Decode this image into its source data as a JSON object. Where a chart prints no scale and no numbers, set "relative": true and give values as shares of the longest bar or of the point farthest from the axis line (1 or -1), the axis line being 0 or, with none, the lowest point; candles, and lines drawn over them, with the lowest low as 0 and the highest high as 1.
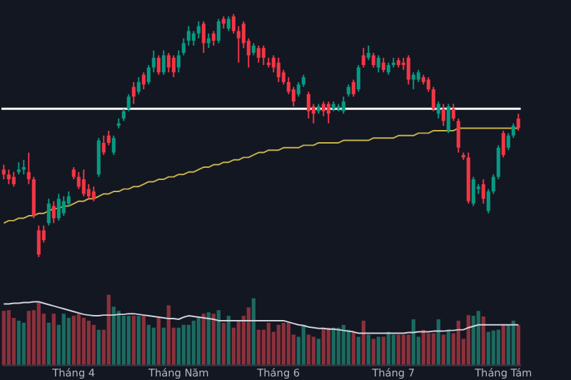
{
  "chart_data": [
    {
      "type": "candlestick",
      "relative": true,
      "tick_labels": false,
      "categories": [
        null,
        null,
        null,
        null,
        null,
        null,
        null,
        null,
        null,
        null,
        null,
        null,
        null,
        null,
        null,
        null,
        null,
        null,
        null,
        null,
        null,
        null,
        null,
        null,
        null,
        null,
        null,
        null,
        null,
        null,
        null,
        null,
        null,
        null,
        null,
        null,
        null,
        null,
        null,
        null,
        null,
        null,
        null,
        null,
        null,
        null,
        null,
        null,
        null,
        null,
        null,
        null,
        null,
        null,
        null,
        null,
        null,
        null,
        null,
        null,
        null,
        null,
        null,
        null,
        null,
        null,
        null,
        null,
        null,
        null,
        null,
        null,
        null,
        null,
        null,
        null,
        null,
        null,
        null,
        null,
        null,
        null,
        null,
        null,
        null,
        null,
        null,
        null,
        null,
        null,
        null,
        null,
        null,
        null,
        null,
        null,
        null,
        null,
        null,
        null,
        null,
        null,
        null,
        null
      ],
      "ohlc": [
        [
          0.36,
          0.38,
          0.32,
          0.34
        ],
        [
          0.34,
          0.36,
          0.3,
          0.32
        ],
        [
          0.33,
          0.35,
          0.29,
          0.3
        ],
        [
          0.35,
          0.39,
          0.34,
          0.36
        ],
        [
          0.36,
          0.4,
          0.34,
          0.37
        ],
        [
          0.35,
          0.43,
          0.3,
          0.32
        ],
        [
          0.32,
          0.33,
          0.16,
          0.17
        ],
        [
          0.11,
          0.13,
          0,
          0.01
        ],
        [
          0.11,
          0.13,
          0.06,
          0.07
        ],
        [
          0.14,
          0.24,
          0.13,
          0.22
        ],
        [
          0.21,
          0.23,
          0.14,
          0.16
        ],
        [
          0.16,
          0.26,
          0.15,
          0.24
        ],
        [
          0.18,
          0.25,
          0.17,
          0.23
        ],
        [
          0.22,
          0.27,
          0.21,
          0.25
        ],
        [
          0.36,
          0.37,
          0.32,
          0.33
        ],
        [
          0.33,
          0.35,
          0.28,
          0.29
        ],
        [
          0.32,
          0.36,
          0.25,
          0.26
        ],
        [
          0.28,
          0.3,
          0.24,
          0.25
        ],
        [
          0.27,
          0.29,
          0.23,
          0.24
        ],
        [
          0.34,
          0.49,
          0.33,
          0.48
        ],
        [
          0.47,
          0.5,
          0.42,
          0.43
        ],
        [
          0.5,
          0.52,
          0.46,
          0.47
        ],
        [
          0.43,
          0.5,
          0.42,
          0.49
        ],
        [
          0.54,
          0.57,
          0.53,
          0.55
        ],
        [
          0.57,
          0.61,
          0.56,
          0.6
        ],
        [
          0.61,
          0.67,
          0.6,
          0.66
        ],
        [
          0.7,
          0.72,
          0.63,
          0.66
        ],
        [
          0.68,
          0.74,
          0.67,
          0.72
        ],
        [
          0.75,
          0.76,
          0.69,
          0.71
        ],
        [
          0.72,
          0.79,
          0.71,
          0.78
        ],
        [
          0.78,
          0.85,
          0.76,
          0.82
        ],
        [
          0.82,
          0.83,
          0.75,
          0.76
        ],
        [
          0.76,
          0.85,
          0.75,
          0.83
        ],
        [
          0.83,
          0.84,
          0.76,
          0.78
        ],
        [
          0.82,
          0.83,
          0.74,
          0.76
        ],
        [
          0.78,
          0.85,
          0.76,
          0.83
        ],
        [
          0.84,
          0.9,
          0.83,
          0.88
        ],
        [
          0.89,
          0.95,
          0.87,
          0.93
        ],
        [
          0.89,
          0.93,
          0.87,
          0.92
        ],
        [
          0.92,
          0.97,
          0.9,
          0.95
        ],
        [
          0.96,
          0.97,
          0.84,
          0.88
        ],
        [
          0.88,
          0.92,
          0.86,
          0.9
        ],
        [
          0.92,
          0.93,
          0.87,
          0.89
        ],
        [
          0.89,
          0.98,
          0.88,
          0.97
        ],
        [
          0.98,
          0.99,
          0.94,
          0.96
        ],
        [
          0.94,
          0.99,
          0.93,
          0.98
        ],
        [
          0.99,
          1.0,
          0.92,
          0.93
        ],
        [
          0.93,
          0.95,
          0.8,
          0.9
        ],
        [
          0.96,
          0.97,
          0.86,
          0.88
        ],
        [
          0.89,
          0.9,
          0.78,
          0.83
        ],
        [
          0.84,
          0.88,
          0.83,
          0.87
        ],
        [
          0.86,
          0.87,
          0.8,
          0.82
        ],
        [
          0.86,
          0.87,
          0.79,
          0.82
        ],
        [
          0.8,
          0.82,
          0.78,
          0.79
        ],
        [
          0.82,
          0.83,
          0.76,
          0.78
        ],
        [
          0.8,
          0.82,
          0.72,
          0.74
        ],
        [
          0.76,
          0.77,
          0.71,
          0.72
        ],
        [
          0.72,
          0.74,
          0.67,
          0.68
        ],
        [
          0.69,
          0.7,
          0.62,
          0.64
        ],
        [
          0.67,
          0.72,
          0.66,
          0.71
        ],
        [
          0.71,
          0.75,
          0.7,
          0.74
        ],
        [
          0.67,
          0.68,
          0.57,
          0.6
        ],
        [
          0.62,
          0.63,
          0.55,
          0.59
        ],
        [
          0.6,
          0.63,
          0.59,
          0.62
        ],
        [
          0.63,
          0.64,
          0.58,
          0.6
        ],
        [
          0.63,
          0.64,
          0.55,
          0.59
        ],
        [
          0.61,
          0.64,
          0.6,
          0.63
        ],
        [
          0.61,
          0.63,
          0.6,
          0.62
        ],
        [
          0.6,
          0.66,
          0.59,
          0.64
        ],
        [
          0.67,
          0.71,
          0.66,
          0.7
        ],
        [
          0.72,
          0.73,
          0.66,
          0.67
        ],
        [
          0.69,
          0.79,
          0.68,
          0.78
        ],
        [
          0.83,
          0.86,
          0.78,
          0.79
        ],
        [
          0.82,
          0.87,
          0.81,
          0.84
        ],
        [
          0.83,
          0.84,
          0.78,
          0.79
        ],
        [
          0.78,
          0.83,
          0.76,
          0.82
        ],
        [
          0.8,
          0.82,
          0.76,
          0.77
        ],
        [
          0.76,
          0.8,
          0.75,
          0.79
        ],
        [
          0.79,
          0.82,
          0.78,
          0.8
        ],
        [
          0.81,
          0.82,
          0.78,
          0.79
        ],
        [
          0.8,
          0.82,
          0.77,
          0.79
        ],
        [
          0.82,
          0.83,
          0.71,
          0.73
        ],
        [
          0.73,
          0.76,
          0.69,
          0.75
        ],
        [
          0.73,
          0.77,
          0.72,
          0.76
        ],
        [
          0.74,
          0.75,
          0.71,
          0.72
        ],
        [
          0.73,
          0.74,
          0.68,
          0.69
        ],
        [
          0.69,
          0.7,
          0.6,
          0.61
        ],
        [
          0.59,
          0.64,
          0.57,
          0.63
        ],
        [
          0.61,
          0.63,
          0.54,
          0.56
        ],
        [
          0.52,
          0.63,
          0.51,
          0.62
        ],
        [
          0.61,
          0.63,
          0.56,
          0.57
        ],
        [
          0.56,
          0.57,
          0.43,
          0.45
        ],
        [
          0.42,
          0.43,
          0.4,
          0.41
        ],
        [
          0.41,
          0.43,
          0.22,
          0.23
        ],
        [
          0.22,
          0.33,
          0.21,
          0.32
        ],
        [
          0.28,
          0.3,
          0.26,
          0.29
        ],
        [
          0.3,
          0.32,
          0.22,
          0.24
        ],
        [
          0.19,
          0.28,
          0.18,
          0.27
        ],
        [
          0.27,
          0.34,
          0.26,
          0.33
        ],
        [
          0.33,
          0.46,
          0.32,
          0.45
        ],
        [
          0.51,
          0.52,
          0.41,
          0.42
        ],
        [
          0.45,
          0.51,
          0.44,
          0.5
        ],
        [
          0.5,
          0.55,
          0.49,
          0.54
        ],
        [
          0.57,
          0.59,
          0.52,
          0.53
        ]
      ],
      "colors": [
        "#f23645",
        "#f23645",
        "#f23645",
        "#089981",
        "#089981",
        "#f23645",
        "#f23645",
        "#f23645",
        "#f23645",
        "#089981",
        "#f23645",
        "#089981",
        "#089981",
        "#089981",
        "#f23645",
        "#f23645",
        "#f23645",
        "#f23645",
        "#f23645",
        "#089981",
        "#f23645",
        "#f23645",
        "#089981",
        "#089981",
        "#089981",
        "#089981",
        "#f23645",
        "#089981",
        "#f23645",
        "#089981",
        "#089981",
        "#f23645",
        "#089981",
        "#f23645",
        "#f23645",
        "#089981",
        "#089981",
        "#089981",
        "#089981",
        "#089981",
        "#f23645",
        "#089981",
        "#f23645",
        "#089981",
        "#f23645",
        "#089981",
        "#f23645",
        "#f23645",
        "#f23645",
        "#f23645",
        "#089981",
        "#f23645",
        "#f23645",
        "#f23645",
        "#f23645",
        "#f23645",
        "#f23645",
        "#f23645",
        "#f23645",
        "#089981",
        "#089981",
        "#f23645",
        "#f23645",
        "#089981",
        "#f23645",
        "#f23645",
        "#089981",
        "#089981",
        "#089981",
        "#089981",
        "#f23645",
        "#089981",
        "#f23645",
        "#089981",
        "#f23645",
        "#089981",
        "#f23645",
        "#089981",
        "#089981",
        "#f23645",
        "#f23645",
        "#f23645",
        "#089981",
        "#089981",
        "#f23645",
        "#f23645",
        "#f23645",
        "#089981",
        "#f23645",
        "#089981",
        "#f23645",
        "#f23645",
        "#f23645",
        "#f23645",
        "#089981",
        "#089981",
        "#f23645",
        "#089981",
        "#089981",
        "#089981",
        "#f23645",
        "#089981",
        "#089981",
        "#f23645"
      ],
      "series": [
        {
          "type": "line",
          "color": "#c9b24a",
          "values": [
            0.14,
            0.15,
            0.15,
            0.16,
            0.16,
            0.17,
            0.17,
            0.18,
            0.18,
            0.19,
            0.2,
            0.2,
            0.21,
            0.21,
            0.22,
            0.23,
            0.23,
            0.24,
            0.24,
            0.25,
            0.26,
            0.26,
            0.27,
            0.27,
            0.28,
            0.28,
            0.29,
            0.29,
            0.3,
            0.31,
            0.31,
            0.32,
            0.32,
            0.33,
            0.33,
            0.34,
            0.34,
            0.35,
            0.35,
            0.36,
            0.37,
            0.37,
            0.38,
            0.38,
            0.39,
            0.39,
            0.4,
            0.4,
            0.41,
            0.41,
            0.42,
            0.43,
            0.43,
            0.44,
            0.44,
            0.44,
            0.45,
            0.45,
            0.45,
            0.45,
            0.46,
            0.46,
            0.46,
            0.47,
            0.47,
            0.47,
            0.47,
            0.47,
            0.48,
            0.48,
            0.48,
            0.48,
            0.48,
            0.48,
            0.49,
            0.49,
            0.49,
            0.49,
            0.49,
            0.5,
            0.5,
            0.5,
            0.5,
            0.51,
            0.51,
            0.51,
            0.52,
            0.52,
            0.52,
            0.52,
            0.52,
            0.53,
            0.53,
            0.53,
            0.53,
            0.53,
            0.53,
            0.53,
            0.53,
            0.53,
            0.53,
            0.53,
            0.53,
            0.53
          ]
        }
      ],
      "ref_lines": [
        {
          "axis": "y",
          "value": 0.61,
          "color": "#ffffff"
        }
      ]
    },
    {
      "type": "bar",
      "relative": true,
      "tick_labels": "x",
      "categories": [
        null,
        null,
        null,
        null,
        null,
        null,
        null,
        null,
        null,
        null,
        null,
        null,
        null,
        null,
        "Tháng 4",
        null,
        null,
        null,
        null,
        null,
        null,
        null,
        null,
        null,
        null,
        null,
        null,
        null,
        null,
        null,
        null,
        null,
        null,
        null,
        null,
        "Tháng Năm",
        null,
        null,
        null,
        null,
        null,
        null,
        null,
        null,
        null,
        null,
        null,
        null,
        null,
        null,
        null,
        null,
        null,
        null,
        null,
        "Tháng 6",
        null,
        null,
        null,
        null,
        null,
        null,
        null,
        null,
        null,
        null,
        null,
        null,
        null,
        null,
        null,
        null,
        null,
        null,
        null,
        null,
        null,
        null,
        "Tháng 7",
        null,
        null,
        null,
        null,
        null,
        null,
        null,
        null,
        null,
        null,
        null,
        null,
        null,
        null,
        null,
        null,
        null,
        null,
        null,
        null,
        null,
        "Tháng Tám",
        null,
        null,
        null
      ],
      "series": [
        {
          "type": "bar",
          "values": [
            0.77,
            0.78,
            0.67,
            0.63,
            0.6,
            0.77,
            0.78,
            0.89,
            0.73,
            0.6,
            0.73,
            0.57,
            0.73,
            0.67,
            0.7,
            0.73,
            0.67,
            0.63,
            0.57,
            0.5,
            0.5,
            1.0,
            0.83,
            0.77,
            0.7,
            0.7,
            0.7,
            0.7,
            0.7,
            0.57,
            0.53,
            0.67,
            0.53,
            0.85,
            0.53,
            0.53,
            0.57,
            0.57,
            0.63,
            0.67,
            0.73,
            0.75,
            0.73,
            0.78,
            0.6,
            0.7,
            0.53,
            0.63,
            0.7,
            0.82,
            0.95,
            0.5,
            0.5,
            0.6,
            0.47,
            0.57,
            0.6,
            0.6,
            0.43,
            0.4,
            0.57,
            0.43,
            0.4,
            0.37,
            0.53,
            0.53,
            0.53,
            0.53,
            0.57,
            0.5,
            0.47,
            0.4,
            0.63,
            0.43,
            0.37,
            0.4,
            0.4,
            0.47,
            0.43,
            0.43,
            0.43,
            0.43,
            0.65,
            0.4,
            0.5,
            0.45,
            0.45,
            0.65,
            0.43,
            0.5,
            0.45,
            0.63,
            0.37,
            0.71,
            0.7,
            0.77,
            0.69,
            0.47,
            0.49,
            0.5,
            0.57,
            0.57,
            0.63,
            0.57
          ],
          "colors": [
            "#8a313c",
            "#8a313c",
            "#8a313c",
            "#1c6a60",
            "#1c6a60",
            "#8a313c",
            "#8a313c",
            "#8a313c",
            "#8a313c",
            "#1c6a60",
            "#8a313c",
            "#1c6a60",
            "#1c6a60",
            "#1c6a60",
            "#8a313c",
            "#8a313c",
            "#8a313c",
            "#8a313c",
            "#8a313c",
            "#1c6a60",
            "#8a313c",
            "#8a313c",
            "#1c6a60",
            "#1c6a60",
            "#1c6a60",
            "#1c6a60",
            "#8a313c",
            "#1c6a60",
            "#8a313c",
            "#1c6a60",
            "#1c6a60",
            "#8a313c",
            "#1c6a60",
            "#8a313c",
            "#8a313c",
            "#1c6a60",
            "#1c6a60",
            "#1c6a60",
            "#1c6a60",
            "#1c6a60",
            "#8a313c",
            "#1c6a60",
            "#8a313c",
            "#1c6a60",
            "#8a313c",
            "#1c6a60",
            "#8a313c",
            "#8a313c",
            "#8a313c",
            "#8a313c",
            "#1c6a60",
            "#8a313c",
            "#8a313c",
            "#8a313c",
            "#8a313c",
            "#8a313c",
            "#8a313c",
            "#8a313c",
            "#8a313c",
            "#1c6a60",
            "#1c6a60",
            "#8a313c",
            "#8a313c",
            "#1c6a60",
            "#8a313c",
            "#8a313c",
            "#1c6a60",
            "#1c6a60",
            "#1c6a60",
            "#1c6a60",
            "#8a313c",
            "#1c6a60",
            "#8a313c",
            "#1c6a60",
            "#8a313c",
            "#1c6a60",
            "#8a313c",
            "#1c6a60",
            "#1c6a60",
            "#8a313c",
            "#8a313c",
            "#8a313c",
            "#1c6a60",
            "#1c6a60",
            "#8a313c",
            "#8a313c",
            "#8a313c",
            "#1c6a60",
            "#8a313c",
            "#1c6a60",
            "#8a313c",
            "#8a313c",
            "#8a313c",
            "#8a313c",
            "#1c6a60",
            "#1c6a60",
            "#8a313c",
            "#1c6a60",
            "#1c6a60",
            "#1c6a60",
            "#8a313c",
            "#1c6a60",
            "#1c6a60",
            "#8a313c"
          ]
        },
        {
          "type": "line",
          "color": "#d1d4dc",
          "values": [
            0.87,
            0.87,
            0.88,
            0.88,
            0.89,
            0.89,
            0.9,
            0.9,
            0.88,
            0.86,
            0.84,
            0.82,
            0.8,
            0.78,
            0.76,
            0.74,
            0.72,
            0.71,
            0.7,
            0.7,
            0.71,
            0.71,
            0.71,
            0.72,
            0.72,
            0.73,
            0.73,
            0.72,
            0.71,
            0.7,
            0.69,
            0.68,
            0.67,
            0.66,
            0.66,
            0.65,
            0.68,
            0.7,
            0.69,
            0.68,
            0.67,
            0.66,
            0.65,
            0.63,
            0.63,
            0.63,
            0.63,
            0.63,
            0.63,
            0.63,
            0.63,
            0.63,
            0.63,
            0.63,
            0.63,
            0.63,
            0.63,
            0.61,
            0.59,
            0.57,
            0.56,
            0.54,
            0.53,
            0.52,
            0.52,
            0.51,
            0.51,
            0.5,
            0.49,
            0.48,
            0.47,
            0.45,
            0.45,
            0.45,
            0.45,
            0.45,
            0.45,
            0.45,
            0.45,
            0.45,
            0.45,
            0.46,
            0.46,
            0.47,
            0.47,
            0.47,
            0.48,
            0.48,
            0.48,
            0.49,
            0.49,
            0.5,
            0.5,
            0.53,
            0.55,
            0.57,
            0.57,
            0.57,
            0.57,
            0.57,
            0.57,
            0.57,
            0.57,
            0.57
          ]
        }
      ]
    }
  ]
}
